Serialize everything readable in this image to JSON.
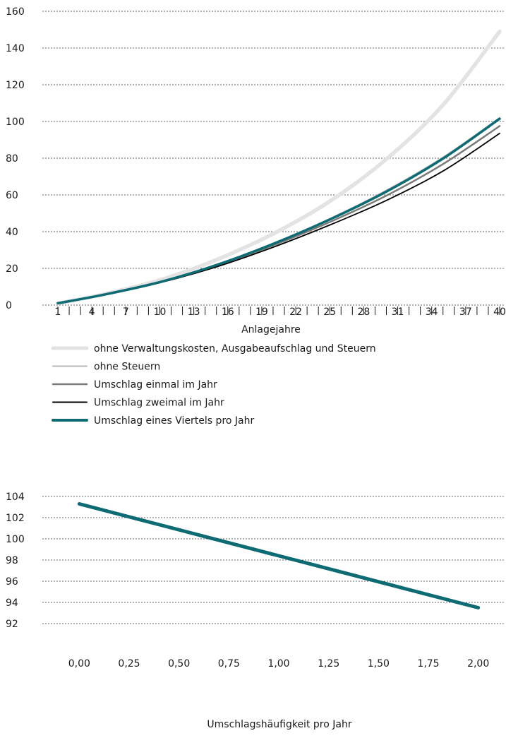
{
  "colors": {
    "no_costs": "#e3e3e3",
    "no_taxes": "#b9b9b9",
    "turnover_once": "#7a7a7a",
    "turnover_twice": "#000000",
    "turnover_quarter": "#0e6b73",
    "grid": "#333333"
  },
  "chart_data": [
    {
      "type": "line",
      "xlabel": "Anlagejahre",
      "ylabel": "",
      "xlim": [
        1,
        40
      ],
      "ylim": [
        0,
        160
      ],
      "yticks": [
        0,
        20,
        40,
        60,
        80,
        100,
        120,
        140,
        160
      ],
      "xticks": [
        1,
        4,
        7,
        10,
        13,
        16,
        19,
        22,
        25,
        28,
        31,
        34,
        37,
        40
      ],
      "grid": "horizontal dashed",
      "legend": "below",
      "series": [
        {
          "name": "ohne Verwaltungskosten, Ausgabeaufschlag und Steuern",
          "color_key": "no_costs",
          "x": [
            1,
            5,
            10,
            15,
            20,
            25,
            30,
            35,
            40
          ],
          "y": [
            1.0,
            5.8,
            13.6,
            24.7,
            38.8,
            56.5,
            79.5,
            109.0,
            149.0
          ]
        },
        {
          "name": "ohne Steuern",
          "color_key": "no_taxes",
          "x": [
            1,
            5,
            10,
            15,
            20,
            25,
            30,
            35,
            40
          ],
          "y": [
            1.0,
            5.6,
            12.6,
            21.9,
            33.6,
            47.0,
            62.5,
            80.5,
            102.0
          ]
        },
        {
          "name": "Umschlag einmal im Jahr",
          "color_key": "turnover_once",
          "x": [
            1,
            5,
            10,
            15,
            20,
            25,
            30,
            35,
            40
          ],
          "y": [
            1.0,
            5.5,
            12.4,
            21.3,
            32.5,
            45.2,
            59.6,
            76.8,
            97.5
          ]
        },
        {
          "name": "Umschlag zweimal im Jahr",
          "color_key": "turnover_twice",
          "x": [
            1,
            5,
            10,
            15,
            20,
            25,
            30,
            35,
            40
          ],
          "y": [
            1.0,
            5.5,
            12.2,
            20.8,
            31.5,
            43.6,
            57.0,
            73.0,
            93.5
          ]
        },
        {
          "name": "Umschlag eines Viertels pro Jahr",
          "color_key": "turnover_quarter",
          "x": [
            1,
            5,
            10,
            15,
            20,
            25,
            30,
            35,
            40
          ],
          "y": [
            1.0,
            5.6,
            12.5,
            21.8,
            33.3,
            46.6,
            61.8,
            79.8,
            101.5
          ]
        }
      ]
    },
    {
      "type": "line",
      "xlabel": "Umschlagshäufigkeit pro Jahr",
      "ylabel": "",
      "xlim": [
        -0.125,
        2.125
      ],
      "ylim": [
        92,
        104
      ],
      "yticks": [
        92,
        94,
        96,
        98,
        100,
        102,
        104
      ],
      "yticklabels": [
        "92",
        "94",
        "96",
        "98",
        "100",
        "102",
        "104"
      ],
      "xticks": [
        0,
        0.25,
        0.5,
        0.75,
        1,
        1.25,
        1.5,
        1.75,
        2
      ],
      "xticklabels": [
        "0,00",
        "0,25",
        "0,50",
        "0,75",
        "1,00",
        "1,25",
        "1,50",
        "1,75",
        "2,00"
      ],
      "grid": "horizontal dashed",
      "series": [
        {
          "color_key": "turnover_quarter",
          "x": [
            0,
            2
          ],
          "y": [
            103.3,
            93.5
          ]
        }
      ]
    }
  ]
}
